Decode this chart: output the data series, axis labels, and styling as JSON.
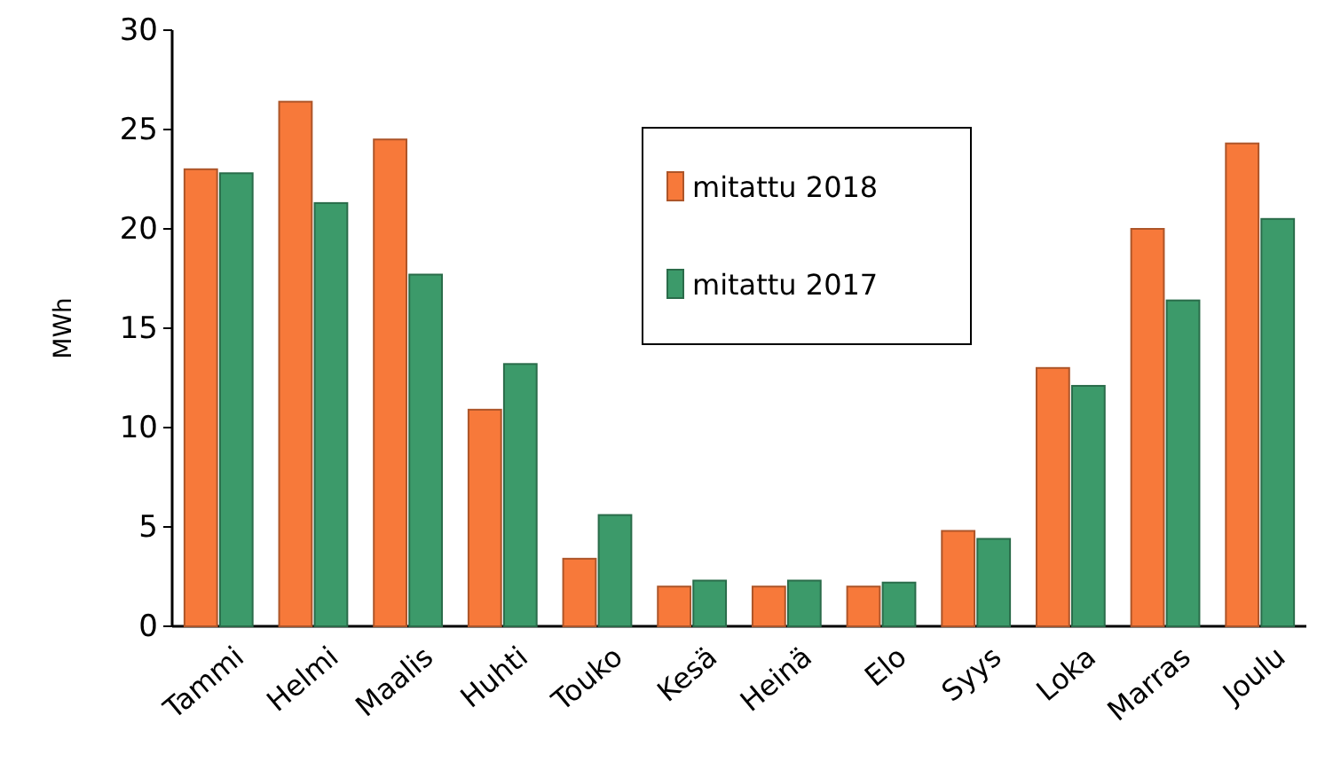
{
  "chart_data": {
    "type": "bar",
    "ylabel": "MWh",
    "categories": [
      "Tammi",
      "Helmi",
      "Maalis",
      "Huhti",
      "Touko",
      "Kesä",
      "Heinä",
      "Elo",
      "Syys",
      "Loka",
      "Marras",
      "Joulu"
    ],
    "series": [
      {
        "name": "mitattu 2018",
        "color": "#f7793a",
        "values": [
          23.0,
          26.4,
          24.5,
          10.9,
          3.4,
          2.0,
          2.0,
          2.0,
          4.8,
          13.0,
          20.0,
          24.3
        ]
      },
      {
        "name": "mitattu 2017",
        "color": "#3c9a6a",
        "values": [
          22.8,
          21.3,
          17.7,
          13.2,
          5.6,
          2.3,
          2.3,
          2.2,
          4.4,
          12.1,
          16.4,
          20.5
        ]
      }
    ],
    "ylim": [
      0,
      30
    ],
    "yticks": [
      0,
      5,
      10,
      15,
      20,
      25,
      30
    ],
    "legend": "top"
  }
}
